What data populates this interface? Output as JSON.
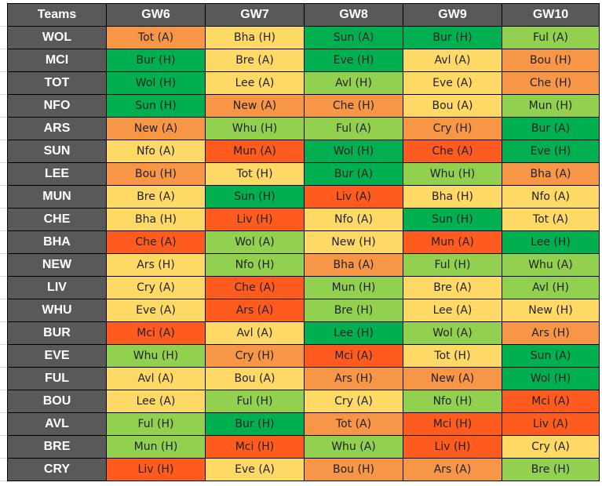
{
  "sheet": {
    "headers": [
      "Teams",
      "GW6",
      "GW7",
      "GW8",
      "GW9",
      "GW10"
    ],
    "colors": {
      "1": "#00b050",
      "2": "#92d050",
      "3": "#ffd966",
      "4": "#f79646",
      "5": "#ff5b1f",
      "header_bg": "#595959",
      "header_text": "#ffffff"
    },
    "rows": [
      {
        "team": "WOL",
        "fixtures": [
          {
            "text": "Tot (A)",
            "rating": 4
          },
          {
            "text": "Bha (H)",
            "rating": 3
          },
          {
            "text": "Sun (A)",
            "rating": 1
          },
          {
            "text": "Bur (H)",
            "rating": 1
          },
          {
            "text": "Ful (A)",
            "rating": 2
          }
        ]
      },
      {
        "team": "MCI",
        "fixtures": [
          {
            "text": "Bur (H)",
            "rating": 1
          },
          {
            "text": "Bre (A)",
            "rating": 3
          },
          {
            "text": "Eve (H)",
            "rating": 1
          },
          {
            "text": "Avl (A)",
            "rating": 3
          },
          {
            "text": "Bou (H)",
            "rating": 4
          }
        ]
      },
      {
        "team": "TOT",
        "fixtures": [
          {
            "text": "Wol (H)",
            "rating": 1
          },
          {
            "text": "Lee (A)",
            "rating": 3
          },
          {
            "text": "Avl (H)",
            "rating": 2
          },
          {
            "text": "Eve (A)",
            "rating": 3
          },
          {
            "text": "Che (H)",
            "rating": 4
          }
        ]
      },
      {
        "team": "NFO",
        "fixtures": [
          {
            "text": "Sun (H)",
            "rating": 1
          },
          {
            "text": "New (A)",
            "rating": 4
          },
          {
            "text": "Che (H)",
            "rating": 4
          },
          {
            "text": "Bou (A)",
            "rating": 3
          },
          {
            "text": "Mun (H)",
            "rating": 2
          }
        ]
      },
      {
        "team": "ARS",
        "fixtures": [
          {
            "text": "New (A)",
            "rating": 4
          },
          {
            "text": "Whu (H)",
            "rating": 2
          },
          {
            "text": "Ful (A)",
            "rating": 2
          },
          {
            "text": "Cry (H)",
            "rating": 4
          },
          {
            "text": "Bur (A)",
            "rating": 1
          }
        ]
      },
      {
        "team": "SUN",
        "fixtures": [
          {
            "text": "Nfo (A)",
            "rating": 3
          },
          {
            "text": "Mun (A)",
            "rating": 5
          },
          {
            "text": "Wol (H)",
            "rating": 1
          },
          {
            "text": "Che (A)",
            "rating": 5
          },
          {
            "text": "Eve (H)",
            "rating": 1
          }
        ]
      },
      {
        "team": "LEE",
        "fixtures": [
          {
            "text": "Bou (H)",
            "rating": 4
          },
          {
            "text": "Tot (H)",
            "rating": 3
          },
          {
            "text": "Bur (A)",
            "rating": 1
          },
          {
            "text": "Whu (H)",
            "rating": 2
          },
          {
            "text": "Bha (A)",
            "rating": 4
          }
        ]
      },
      {
        "team": "MUN",
        "fixtures": [
          {
            "text": "Bre (A)",
            "rating": 3
          },
          {
            "text": "Sun (H)",
            "rating": 1
          },
          {
            "text": "Liv (A)",
            "rating": 5
          },
          {
            "text": "Bha (H)",
            "rating": 3
          },
          {
            "text": "Nfo (A)",
            "rating": 3
          }
        ]
      },
      {
        "team": "CHE",
        "fixtures": [
          {
            "text": "Bha (H)",
            "rating": 3
          },
          {
            "text": "Liv (H)",
            "rating": 5
          },
          {
            "text": "Nfo (A)",
            "rating": 3
          },
          {
            "text": "Sun (H)",
            "rating": 1
          },
          {
            "text": "Tot (A)",
            "rating": 3
          }
        ]
      },
      {
        "team": "BHA",
        "fixtures": [
          {
            "text": "Che (A)",
            "rating": 5
          },
          {
            "text": "Wol (A)",
            "rating": 2
          },
          {
            "text": "New (H)",
            "rating": 3
          },
          {
            "text": "Mun (A)",
            "rating": 5
          },
          {
            "text": "Lee (H)",
            "rating": 1
          }
        ]
      },
      {
        "team": "NEW",
        "fixtures": [
          {
            "text": "Ars (H)",
            "rating": 3
          },
          {
            "text": "Nfo (H)",
            "rating": 2
          },
          {
            "text": "Bha (A)",
            "rating": 4
          },
          {
            "text": "Ful (H)",
            "rating": 2
          },
          {
            "text": "Whu (A)",
            "rating": 2
          }
        ]
      },
      {
        "team": "LIV",
        "fixtures": [
          {
            "text": "Cry (A)",
            "rating": 3
          },
          {
            "text": "Che (A)",
            "rating": 5
          },
          {
            "text": "Mun (H)",
            "rating": 2
          },
          {
            "text": "Bre (A)",
            "rating": 3
          },
          {
            "text": "Avl (H)",
            "rating": 2
          }
        ]
      },
      {
        "team": "WHU",
        "fixtures": [
          {
            "text": "Eve (A)",
            "rating": 3
          },
          {
            "text": "Ars (A)",
            "rating": 5
          },
          {
            "text": "Bre (H)",
            "rating": 2
          },
          {
            "text": "Lee (A)",
            "rating": 3
          },
          {
            "text": "New (H)",
            "rating": 3
          }
        ]
      },
      {
        "team": "BUR",
        "fixtures": [
          {
            "text": "Mci (A)",
            "rating": 5
          },
          {
            "text": "Avl (A)",
            "rating": 3
          },
          {
            "text": "Lee (H)",
            "rating": 1
          },
          {
            "text": "Wol (A)",
            "rating": 2
          },
          {
            "text": "Ars (H)",
            "rating": 4
          }
        ]
      },
      {
        "team": "EVE",
        "fixtures": [
          {
            "text": "Whu (H)",
            "rating": 2
          },
          {
            "text": "Cry (H)",
            "rating": 4
          },
          {
            "text": "Mci (A)",
            "rating": 5
          },
          {
            "text": "Tot (H)",
            "rating": 3
          },
          {
            "text": "Sun (A)",
            "rating": 1
          }
        ]
      },
      {
        "team": "FUL",
        "fixtures": [
          {
            "text": "Avl (A)",
            "rating": 3
          },
          {
            "text": "Bou (A)",
            "rating": 3
          },
          {
            "text": "Ars (H)",
            "rating": 4
          },
          {
            "text": "New (A)",
            "rating": 4
          },
          {
            "text": "Wol (H)",
            "rating": 1
          }
        ]
      },
      {
        "team": "BOU",
        "fixtures": [
          {
            "text": "Lee (A)",
            "rating": 3
          },
          {
            "text": "Ful (H)",
            "rating": 2
          },
          {
            "text": "Cry (A)",
            "rating": 3
          },
          {
            "text": "Nfo (H)",
            "rating": 2
          },
          {
            "text": "Mci (A)",
            "rating": 5
          }
        ]
      },
      {
        "team": "AVL",
        "fixtures": [
          {
            "text": "Ful (H)",
            "rating": 2
          },
          {
            "text": "Bur (H)",
            "rating": 1
          },
          {
            "text": "Tot (A)",
            "rating": 4
          },
          {
            "text": "Mci (H)",
            "rating": 5
          },
          {
            "text": "Liv (A)",
            "rating": 5
          }
        ]
      },
      {
        "team": "BRE",
        "fixtures": [
          {
            "text": "Mun (H)",
            "rating": 2
          },
          {
            "text": "Mci (H)",
            "rating": 5
          },
          {
            "text": "Whu (A)",
            "rating": 2
          },
          {
            "text": "Liv (H)",
            "rating": 5
          },
          {
            "text": "Cry (A)",
            "rating": 3
          }
        ]
      },
      {
        "team": "CRY",
        "fixtures": [
          {
            "text": "Liv (H)",
            "rating": 5
          },
          {
            "text": "Eve (A)",
            "rating": 3
          },
          {
            "text": "Bou (H)",
            "rating": 4
          },
          {
            "text": "Ars (A)",
            "rating": 4
          },
          {
            "text": "Bre (H)",
            "rating": 2
          }
        ]
      }
    ]
  }
}
